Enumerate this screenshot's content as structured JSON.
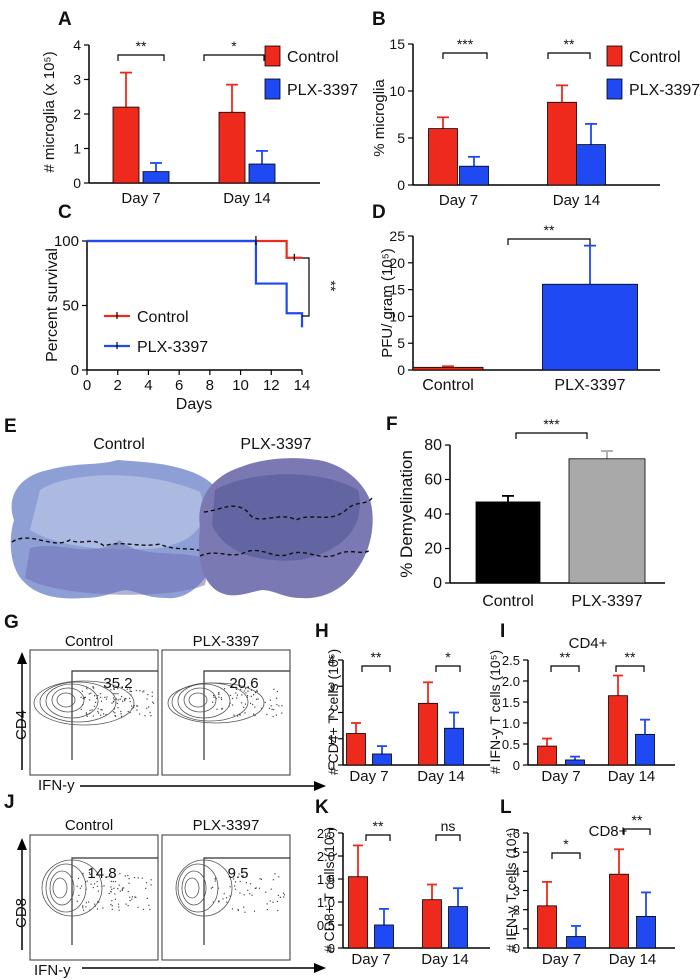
{
  "colors": {
    "control": "#ee2a1c",
    "treated": "#1f49f3",
    "black": "#000000",
    "gray": "#a9a9a9"
  },
  "chart_data": [
    {
      "panel": "A",
      "type": "bar",
      "ylabel": "# microglia (x 10⁵)",
      "ylim": [
        0,
        4
      ],
      "yticks": [
        0,
        1,
        2,
        3,
        4
      ],
      "categories": [
        "Day 7",
        "Day 14"
      ],
      "series": [
        {
          "name": "Control",
          "values": [
            2.2,
            2.05
          ],
          "errors": [
            1.0,
            0.8
          ]
        },
        {
          "name": "PLX-3397",
          "values": [
            0.33,
            0.55
          ],
          "errors": [
            0.25,
            0.38
          ]
        }
      ],
      "significance": [
        "**",
        "*"
      ],
      "legend": [
        "Control",
        "PLX-3397"
      ]
    },
    {
      "panel": "B",
      "type": "bar",
      "ylabel": "% microglia",
      "ylim": [
        0,
        15
      ],
      "yticks": [
        0,
        5,
        10,
        15
      ],
      "categories": [
        "Day  7",
        "Day  14"
      ],
      "series": [
        {
          "name": "Control",
          "values": [
            6.0,
            8.8
          ],
          "errors": [
            1.2,
            1.8
          ]
        },
        {
          "name": "PLX-3397",
          "values": [
            2.0,
            4.3
          ],
          "errors": [
            1.0,
            2.2
          ]
        }
      ],
      "significance": [
        "***",
        "**"
      ],
      "legend": [
        "Control",
        "PLX-3397"
      ]
    },
    {
      "panel": "C",
      "type": "line",
      "xlabel": "Days",
      "ylabel": "Percent survival",
      "xlim": [
        0,
        14
      ],
      "ylim": [
        0,
        100
      ],
      "xticks": [
        0,
        2,
        4,
        6,
        8,
        10,
        12,
        14
      ],
      "yticks": [
        0,
        50,
        100
      ],
      "series": [
        {
          "name": "Control",
          "x": [
            0,
            13,
            13,
            14
          ],
          "y": [
            100,
            100,
            87,
            87
          ]
        },
        {
          "name": "PLX-3397",
          "x": [
            0,
            11,
            11,
            13,
            13,
            14,
            14
          ],
          "y": [
            100,
            100,
            67,
            67,
            44,
            44,
            33
          ]
        }
      ],
      "significance": "**",
      "legend": [
        "Control",
        "PLX-3397"
      ]
    },
    {
      "panel": "D",
      "type": "bar",
      "ylabel": "PFU/ gram (10⁵)",
      "ylim": [
        0,
        25
      ],
      "yticks": [
        0,
        5,
        10,
        15,
        20,
        25
      ],
      "categories": [
        "Control",
        "PLX-3397"
      ],
      "values": [
        0.5,
        16
      ],
      "errors": [
        0.2,
        7.2
      ],
      "significance": "**"
    },
    {
      "panel": "F",
      "type": "bar",
      "ylabel": "% Demyelination",
      "ylim": [
        0,
        80
      ],
      "yticks": [
        0,
        20,
        40,
        60,
        80
      ],
      "categories": [
        "Control",
        "PLX-3397"
      ],
      "values": [
        47,
        72
      ],
      "errors": [
        3.5,
        4.5
      ],
      "significance": "***"
    },
    {
      "panel": "G",
      "type": "flow",
      "ylabel": "CD4",
      "xlabel": "IFN-y",
      "samples": [
        "Control",
        "PLX-3397"
      ],
      "percentages": [
        "35.2",
        "20.6"
      ]
    },
    {
      "panel": "H",
      "type": "bar",
      "ylabel": "# CD4+ T cells (10⁵)",
      "ylim": [
        0,
        4
      ],
      "yticks": [
        0,
        1,
        2,
        3,
        4
      ],
      "categories": [
        "Day 7",
        "Day 14"
      ],
      "series": [
        {
          "name": "Control",
          "values": [
            1.2,
            2.35
          ],
          "errors": [
            0.4,
            0.8
          ]
        },
        {
          "name": "PLX-3397",
          "values": [
            0.42,
            1.4
          ],
          "errors": [
            0.3,
            0.6
          ]
        }
      ],
      "significance": [
        "**",
        "*"
      ]
    },
    {
      "panel": "I",
      "type": "bar",
      "title": "CD4+",
      "ylabel": "# IFN-y T cells (10⁵)",
      "ylim": [
        0,
        2.5
      ],
      "yticks": [
        "0",
        "0.5",
        "1.0",
        "1.5",
        "2.0",
        "2.5"
      ],
      "categories": [
        "Day 7",
        "Day 14"
      ],
      "series": [
        {
          "name": "Control",
          "values": [
            0.45,
            1.65
          ],
          "errors": [
            0.18,
            0.48
          ]
        },
        {
          "name": "PLX-3397",
          "values": [
            0.12,
            0.73
          ],
          "errors": [
            0.08,
            0.35
          ]
        }
      ],
      "significance": [
        "**",
        "**"
      ]
    },
    {
      "panel": "J",
      "type": "flow",
      "ylabel": "CD8",
      "xlabel": "IFN-y",
      "samples": [
        "Control",
        "PLX-3397"
      ],
      "percentages": [
        "14.8",
        "9.5"
      ]
    },
    {
      "panel": "K",
      "type": "bar",
      "ylabel": "# CD8+ T cells (10⁵)",
      "ylim": [
        0,
        2.5
      ],
      "yticks": [
        "0",
        "0.5",
        "1.0",
        "1.5",
        "2.0",
        "2.5"
      ],
      "categories": [
        "Day 7",
        "Day 14"
      ],
      "series": [
        {
          "name": "Control",
          "values": [
            1.55,
            1.05
          ],
          "errors": [
            0.68,
            0.33
          ]
        },
        {
          "name": "PLX-3397",
          "values": [
            0.5,
            0.9
          ],
          "errors": [
            0.35,
            0.4
          ]
        }
      ],
      "significance": [
        "**",
        "ns"
      ]
    },
    {
      "panel": "L",
      "type": "bar",
      "title": "CD8+",
      "ylabel": "# IFN-y T cells (10⁴)",
      "ylim": [
        0,
        6
      ],
      "yticks": [
        0,
        1,
        2,
        3,
        4,
        5,
        6
      ],
      "categories": [
        "Day 7",
        "Day 14"
      ],
      "series": [
        {
          "name": "Control",
          "values": [
            2.2,
            3.85
          ],
          "errors": [
            1.25,
            1.3
          ]
        },
        {
          "name": "PLX-3397",
          "values": [
            0.6,
            1.65
          ],
          "errors": [
            0.55,
            1.25
          ]
        }
      ],
      "significance": [
        "*",
        "**"
      ]
    }
  ],
  "histology": {
    "panel": "E",
    "labels": [
      "Control",
      "PLX-3397"
    ]
  }
}
